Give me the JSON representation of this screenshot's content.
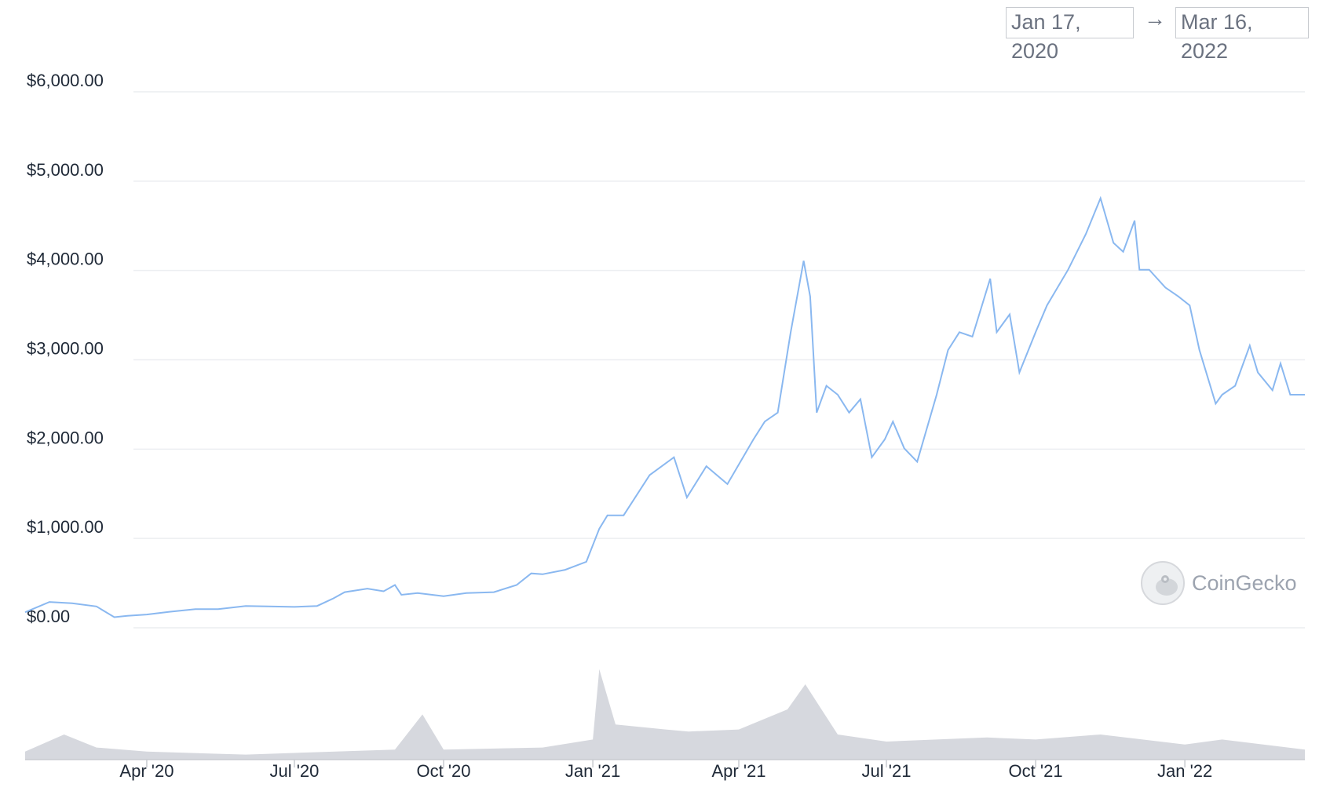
{
  "date_range": {
    "from": "Jan 17, 2020",
    "arrow": "→",
    "to": "Mar 16, 2022"
  },
  "watermark": {
    "text": "CoinGecko",
    "icon": "gecko-logo-icon"
  },
  "colors": {
    "price_line": "#8ab8f0",
    "volume": "#d6d8de",
    "grid": "#eceef1",
    "text": "#1f2937"
  },
  "chart_data": {
    "type": "line",
    "title": "",
    "xlabel": "",
    "ylabel": "",
    "ylim": [
      0,
      6000
    ],
    "y_ticks": [
      "$0.00",
      "$1,000.00",
      "$2,000.00",
      "$3,000.00",
      "$4,000.00",
      "$5,000.00",
      "$6,000.00"
    ],
    "x_ticks": [
      "Apr '20",
      "Jul '20",
      "Oct '20",
      "Jan '21",
      "Apr '21",
      "Jul '21",
      "Oct '21",
      "Jan '22"
    ],
    "grid": true,
    "series": [
      {
        "kind": "price",
        "x": [
          "2020-01-17",
          "2020-02-01",
          "2020-02-15",
          "2020-03-01",
          "2020-03-12",
          "2020-03-20",
          "2020-04-01",
          "2020-04-15",
          "2020-05-01",
          "2020-05-15",
          "2020-06-01",
          "2020-06-15",
          "2020-07-01",
          "2020-07-15",
          "2020-07-25",
          "2020-08-01",
          "2020-08-15",
          "2020-08-25",
          "2020-09-01",
          "2020-09-05",
          "2020-09-15",
          "2020-10-01",
          "2020-10-15",
          "2020-11-01",
          "2020-11-15",
          "2020-11-24",
          "2020-12-01",
          "2020-12-15",
          "2020-12-28",
          "2021-01-05",
          "2021-01-10",
          "2021-01-20",
          "2021-02-05",
          "2021-02-20",
          "2021-02-28",
          "2021-03-12",
          "2021-03-25",
          "2021-04-10",
          "2021-04-17",
          "2021-04-25",
          "2021-05-03",
          "2021-05-11",
          "2021-05-15",
          "2021-05-19",
          "2021-05-25",
          "2021-06-01",
          "2021-06-08",
          "2021-06-15",
          "2021-06-22",
          "2021-06-30",
          "2021-07-05",
          "2021-07-12",
          "2021-07-20",
          "2021-08-01",
          "2021-08-08",
          "2021-08-15",
          "2021-08-23",
          "2021-09-03",
          "2021-09-07",
          "2021-09-15",
          "2021-09-21",
          "2021-10-01",
          "2021-10-08",
          "2021-10-21",
          "2021-11-01",
          "2021-11-10",
          "2021-11-18",
          "2021-11-24",
          "2021-12-01",
          "2021-12-04",
          "2021-12-10",
          "2021-12-20",
          "2021-12-28",
          "2022-01-04",
          "2022-01-10",
          "2022-01-20",
          "2022-01-24",
          "2022-02-01",
          "2022-02-10",
          "2022-02-15",
          "2022-02-24",
          "2022-03-01",
          "2022-03-07",
          "2022-03-16"
        ],
        "y": [
          165,
          280,
          265,
          230,
          110,
          125,
          140,
          170,
          200,
          200,
          235,
          230,
          225,
          235,
          320,
          390,
          430,
          400,
          470,
          360,
          380,
          345,
          380,
          390,
          470,
          600,
          590,
          640,
          730,
          1100,
          1250,
          1250,
          1700,
          1900,
          1450,
          1800,
          1600,
          2100,
          2300,
          2400,
          3300,
          4100,
          3700,
          2400,
          2700,
          2600,
          2400,
          2550,
          1900,
          2100,
          2300,
          2000,
          1850,
          2600,
          3100,
          3300,
          3250,
          3900,
          3300,
          3500,
          2850,
          3300,
          3600,
          4000,
          4400,
          4800,
          4300,
          4200,
          4550,
          4000,
          4000,
          3800,
          3700,
          3600,
          3100,
          2500,
          2600,
          2700,
          3150,
          2850,
          2650,
          2950,
          2600,
          2600
        ]
      },
      {
        "kind": "volume",
        "x": [
          "2020-01-17",
          "2020-02-10",
          "2020-03-01",
          "2020-04-01",
          "2020-06-01",
          "2020-09-01",
          "2020-09-18",
          "2020-10-01",
          "2020-12-01",
          "2021-01-01",
          "2021-01-05",
          "2021-01-15",
          "2021-02-15",
          "2021-03-01",
          "2021-04-01",
          "2021-05-01",
          "2021-05-12",
          "2021-05-20",
          "2021-06-01",
          "2021-07-01",
          "2021-09-01",
          "2021-10-01",
          "2021-11-10",
          "2022-01-01",
          "2022-01-24",
          "2022-03-16"
        ],
        "y": [
          0.08,
          0.25,
          0.12,
          0.08,
          0.05,
          0.1,
          0.45,
          0.1,
          0.12,
          0.2,
          0.9,
          0.35,
          0.3,
          0.28,
          0.3,
          0.5,
          0.75,
          0.55,
          0.25,
          0.18,
          0.22,
          0.2,
          0.25,
          0.15,
          0.2,
          0.1
        ]
      }
    ]
  }
}
